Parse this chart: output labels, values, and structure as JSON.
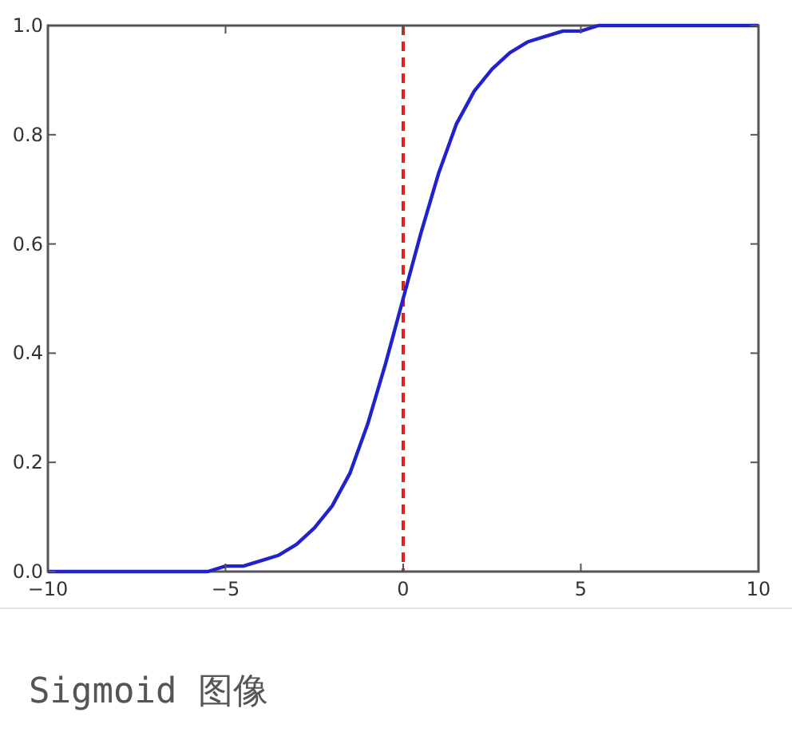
{
  "chart_data": {
    "type": "line",
    "x": [
      -10,
      -9.5,
      -9,
      -8.5,
      -8,
      -7.5,
      -7,
      -6.5,
      -6,
      -5.5,
      -5,
      -4.5,
      -4,
      -3.5,
      -3,
      -2.5,
      -2,
      -1.5,
      -1,
      -0.5,
      0,
      0.5,
      1,
      1.5,
      2,
      2.5,
      3,
      3.5,
      4,
      4.5,
      5,
      5.5,
      6,
      6.5,
      7,
      7.5,
      8,
      8.5,
      9,
      9.5,
      10
    ],
    "series": [
      {
        "color": "#2222cc",
        "values": [
          0,
          0,
          0,
          0,
          0,
          0,
          0,
          0,
          0,
          0,
          0.01,
          0.01,
          0.02,
          0.03,
          0.05,
          0.08,
          0.12,
          0.18,
          0.27,
          0.38,
          0.5,
          0.62,
          0.73,
          0.82,
          0.88,
          0.92,
          0.95,
          0.97,
          0.98,
          0.99,
          0.99,
          1,
          1,
          1,
          1,
          1,
          1,
          1,
          1,
          1,
          1
        ]
      }
    ],
    "xlim": [
      -10,
      10
    ],
    "xticks": [
      {
        "value": -10,
        "label": "−10"
      },
      {
        "value": -5,
        "label": "−5"
      },
      0,
      5,
      10
    ],
    "ylim": [
      0,
      1
    ],
    "yticks": [
      {
        "value": 0,
        "label": "0.0"
      },
      0.2,
      0.4,
      0.6,
      0.8,
      {
        "value": 1,
        "label": "1.0"
      }
    ],
    "ref_lines": [
      {
        "axis": "x",
        "value": 0,
        "color": "#dd2222",
        "line_style": "dashed"
      }
    ],
    "grid": false,
    "marker": "none",
    "line_style": "solid",
    "annotations": [
      "Sigmoid 图像"
    ]
  }
}
